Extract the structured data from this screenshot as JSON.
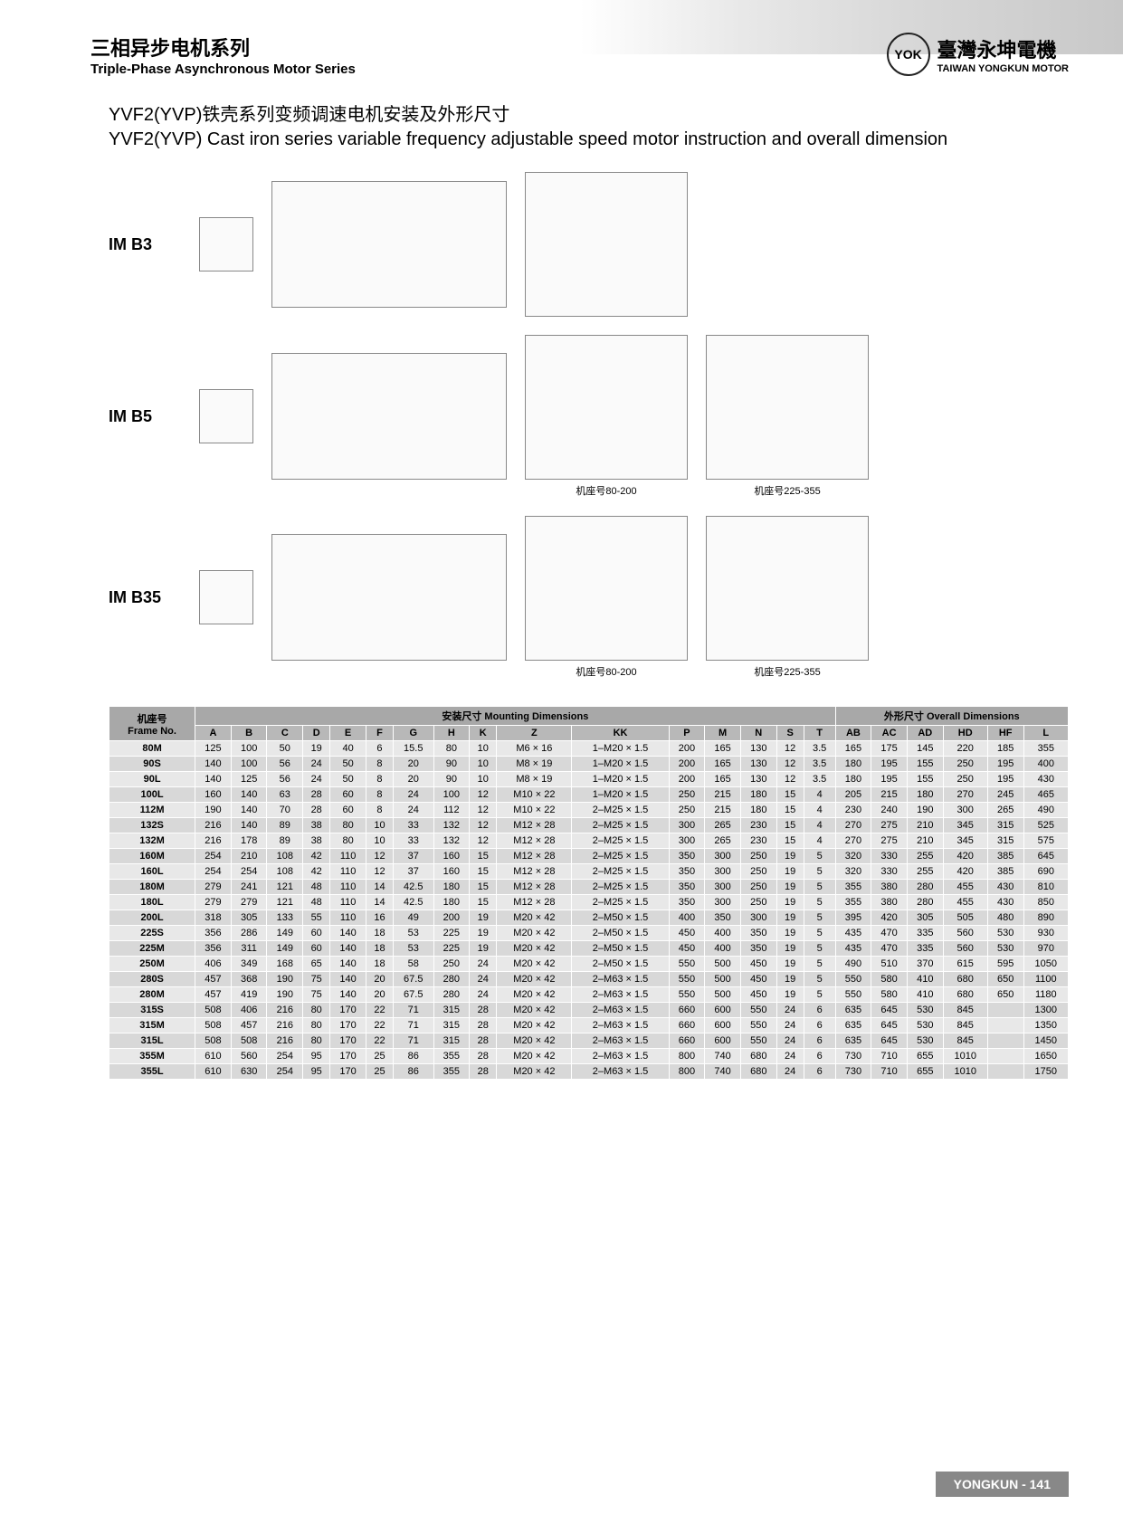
{
  "header": {
    "title_cn": "三相异步电机系列",
    "title_en": "Triple-Phase Asynchronous Motor Series",
    "brand_cn": "臺灣永坤電機",
    "brand_en": "TAIWAN YONGKUN MOTOR",
    "logo_text": "YOK"
  },
  "section": {
    "title_cn": "YVF2(YVP)铁壳系列变频调速电机安装及外形尺寸",
    "title_en": "YVF2(YVP) Cast iron series variable frequency adjustable speed motor instruction and overall dimension"
  },
  "diagrams": {
    "rows": [
      {
        "label": "IM B3",
        "fronts": [
          {
            "caption": ""
          }
        ]
      },
      {
        "label": "IM B5",
        "fronts": [
          {
            "caption": "机座号80-200"
          },
          {
            "caption": "机座号225-355"
          }
        ]
      },
      {
        "label": "IM B35",
        "fronts": [
          {
            "caption": "机座号80-200"
          },
          {
            "caption": "机座号225-355"
          }
        ]
      }
    ]
  },
  "table": {
    "header_group1": "安装尺寸 Mounting Dimensions",
    "header_group2": "外形尺寸 Overall Dimensions",
    "frame_label_cn": "机座号",
    "frame_label_en": "Frame No.",
    "columns": [
      "A",
      "B",
      "C",
      "D",
      "E",
      "F",
      "G",
      "H",
      "K",
      "Z",
      "KK",
      "P",
      "M",
      "N",
      "S",
      "T",
      "AB",
      "AC",
      "AD",
      "HD",
      "HF",
      "L"
    ],
    "rows": [
      {
        "frame": "80M",
        "v": [
          "125",
          "100",
          "50",
          "19",
          "40",
          "6",
          "15.5",
          "80",
          "10",
          "M6 × 16",
          "1–M20 × 1.5",
          "200",
          "165",
          "130",
          "12",
          "3.5",
          "165",
          "175",
          "145",
          "220",
          "185",
          "355"
        ]
      },
      {
        "frame": "90S",
        "v": [
          "140",
          "100",
          "56",
          "24",
          "50",
          "8",
          "20",
          "90",
          "10",
          "M8 × 19",
          "1–M20 × 1.5",
          "200",
          "165",
          "130",
          "12",
          "3.5",
          "180",
          "195",
          "155",
          "250",
          "195",
          "400"
        ]
      },
      {
        "frame": "90L",
        "v": [
          "140",
          "125",
          "56",
          "24",
          "50",
          "8",
          "20",
          "90",
          "10",
          "M8 × 19",
          "1–M20 × 1.5",
          "200",
          "165",
          "130",
          "12",
          "3.5",
          "180",
          "195",
          "155",
          "250",
          "195",
          "430"
        ]
      },
      {
        "frame": "100L",
        "v": [
          "160",
          "140",
          "63",
          "28",
          "60",
          "8",
          "24",
          "100",
          "12",
          "M10 × 22",
          "1–M20 × 1.5",
          "250",
          "215",
          "180",
          "15",
          "4",
          "205",
          "215",
          "180",
          "270",
          "245",
          "465"
        ]
      },
      {
        "frame": "112M",
        "v": [
          "190",
          "140",
          "70",
          "28",
          "60",
          "8",
          "24",
          "112",
          "12",
          "M10 × 22",
          "2–M25 × 1.5",
          "250",
          "215",
          "180",
          "15",
          "4",
          "230",
          "240",
          "190",
          "300",
          "265",
          "490"
        ]
      },
      {
        "frame": "132S",
        "v": [
          "216",
          "140",
          "89",
          "38",
          "80",
          "10",
          "33",
          "132",
          "12",
          "M12 × 28",
          "2–M25 × 1.5",
          "300",
          "265",
          "230",
          "15",
          "4",
          "270",
          "275",
          "210",
          "345",
          "315",
          "525"
        ]
      },
      {
        "frame": "132M",
        "v": [
          "216",
          "178",
          "89",
          "38",
          "80",
          "10",
          "33",
          "132",
          "12",
          "M12 × 28",
          "2–M25 × 1.5",
          "300",
          "265",
          "230",
          "15",
          "4",
          "270",
          "275",
          "210",
          "345",
          "315",
          "575"
        ]
      },
      {
        "frame": "160M",
        "v": [
          "254",
          "210",
          "108",
          "42",
          "110",
          "12",
          "37",
          "160",
          "15",
          "M12 × 28",
          "2–M25 × 1.5",
          "350",
          "300",
          "250",
          "19",
          "5",
          "320",
          "330",
          "255",
          "420",
          "385",
          "645"
        ]
      },
      {
        "frame": "160L",
        "v": [
          "254",
          "254",
          "108",
          "42",
          "110",
          "12",
          "37",
          "160",
          "15",
          "M12 × 28",
          "2–M25 × 1.5",
          "350",
          "300",
          "250",
          "19",
          "5",
          "320",
          "330",
          "255",
          "420",
          "385",
          "690"
        ]
      },
      {
        "frame": "180M",
        "v": [
          "279",
          "241",
          "121",
          "48",
          "110",
          "14",
          "42.5",
          "180",
          "15",
          "M12 × 28",
          "2–M25 × 1.5",
          "350",
          "300",
          "250",
          "19",
          "5",
          "355",
          "380",
          "280",
          "455",
          "430",
          "810"
        ]
      },
      {
        "frame": "180L",
        "v": [
          "279",
          "279",
          "121",
          "48",
          "110",
          "14",
          "42.5",
          "180",
          "15",
          "M12 × 28",
          "2–M25 × 1.5",
          "350",
          "300",
          "250",
          "19",
          "5",
          "355",
          "380",
          "280",
          "455",
          "430",
          "850"
        ]
      },
      {
        "frame": "200L",
        "v": [
          "318",
          "305",
          "133",
          "55",
          "110",
          "16",
          "49",
          "200",
          "19",
          "M20 × 42",
          "2–M50 × 1.5",
          "400",
          "350",
          "300",
          "19",
          "5",
          "395",
          "420",
          "305",
          "505",
          "480",
          "890"
        ]
      },
      {
        "frame": "225S",
        "v": [
          "356",
          "286",
          "149",
          "60",
          "140",
          "18",
          "53",
          "225",
          "19",
          "M20 × 42",
          "2–M50 × 1.5",
          "450",
          "400",
          "350",
          "19",
          "5",
          "435",
          "470",
          "335",
          "560",
          "530",
          "930"
        ]
      },
      {
        "frame": "225M",
        "v": [
          "356",
          "311",
          "149",
          "60",
          "140",
          "18",
          "53",
          "225",
          "19",
          "M20 × 42",
          "2–M50 × 1.5",
          "450",
          "400",
          "350",
          "19",
          "5",
          "435",
          "470",
          "335",
          "560",
          "530",
          "970"
        ]
      },
      {
        "frame": "250M",
        "v": [
          "406",
          "349",
          "168",
          "65",
          "140",
          "18",
          "58",
          "250",
          "24",
          "M20 × 42",
          "2–M50 × 1.5",
          "550",
          "500",
          "450",
          "19",
          "5",
          "490",
          "510",
          "370",
          "615",
          "595",
          "1050"
        ]
      },
      {
        "frame": "280S",
        "v": [
          "457",
          "368",
          "190",
          "75",
          "140",
          "20",
          "67.5",
          "280",
          "24",
          "M20 × 42",
          "2–M63 × 1.5",
          "550",
          "500",
          "450",
          "19",
          "5",
          "550",
          "580",
          "410",
          "680",
          "650",
          "1100"
        ]
      },
      {
        "frame": "280M",
        "v": [
          "457",
          "419",
          "190",
          "75",
          "140",
          "20",
          "67.5",
          "280",
          "24",
          "M20 × 42",
          "2–M63 × 1.5",
          "550",
          "500",
          "450",
          "19",
          "5",
          "550",
          "580",
          "410",
          "680",
          "650",
          "1180"
        ]
      },
      {
        "frame": "315S",
        "v": [
          "508",
          "406",
          "216",
          "80",
          "170",
          "22",
          "71",
          "315",
          "28",
          "M20 × 42",
          "2–M63 × 1.5",
          "660",
          "600",
          "550",
          "24",
          "6",
          "635",
          "645",
          "530",
          "845",
          "",
          "1300"
        ]
      },
      {
        "frame": "315M",
        "v": [
          "508",
          "457",
          "216",
          "80",
          "170",
          "22",
          "71",
          "315",
          "28",
          "M20 × 42",
          "2–M63 × 1.5",
          "660",
          "600",
          "550",
          "24",
          "6",
          "635",
          "645",
          "530",
          "845",
          "",
          "1350"
        ]
      },
      {
        "frame": "315L",
        "v": [
          "508",
          "508",
          "216",
          "80",
          "170",
          "22",
          "71",
          "315",
          "28",
          "M20 × 42",
          "2–M63 × 1.5",
          "660",
          "600",
          "550",
          "24",
          "6",
          "635",
          "645",
          "530",
          "845",
          "",
          "1450"
        ]
      },
      {
        "frame": "355M",
        "v": [
          "610",
          "560",
          "254",
          "95",
          "170",
          "25",
          "86",
          "355",
          "28",
          "M20 × 42",
          "2–M63 × 1.5",
          "800",
          "740",
          "680",
          "24",
          "6",
          "730",
          "710",
          "655",
          "1010",
          "",
          "1650"
        ]
      },
      {
        "frame": "355L",
        "v": [
          "610",
          "630",
          "254",
          "95",
          "170",
          "25",
          "86",
          "355",
          "28",
          "M20 × 42",
          "2–M63 × 1.5",
          "800",
          "740",
          "680",
          "24",
          "6",
          "730",
          "710",
          "655",
          "1010",
          "",
          "1750"
        ]
      }
    ]
  },
  "footer": "YONGKUN - 141",
  "colors": {
    "header_gradient_start": "#ffffff",
    "header_gradient_end": "#c8c8c8",
    "table_header_bg": "#b8b8b8",
    "table_row_odd": "#e8e8e8",
    "table_row_even": "#d8d8d8",
    "footer_bg": "#888888"
  }
}
